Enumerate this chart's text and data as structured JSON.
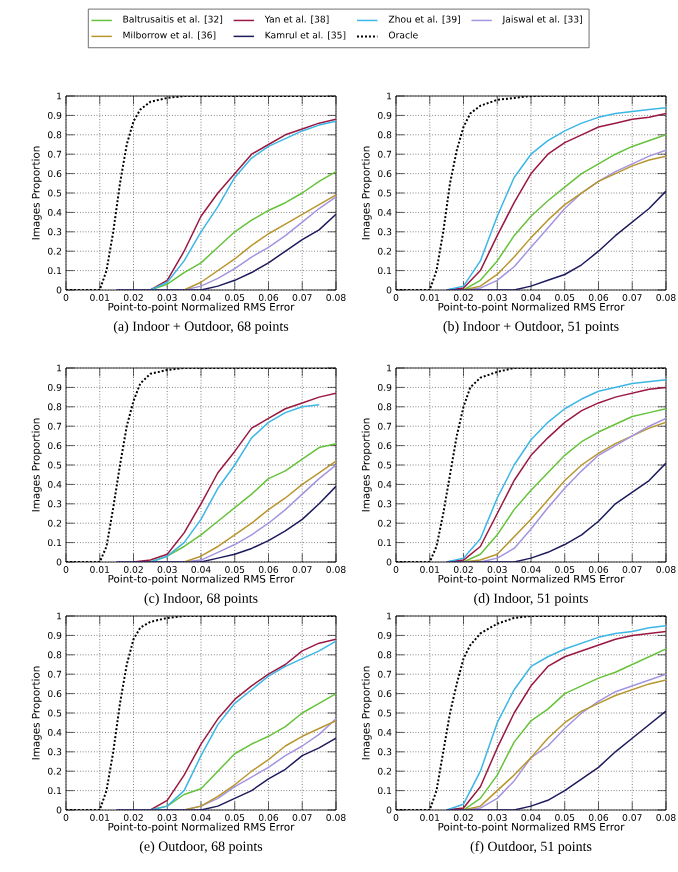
{
  "chart_data": [
    {
      "type": "line",
      "title": "(a) Indoor + Outdoor, 68 points",
      "xlabel": "Point-to-point Normalized RMS Error",
      "ylabel": "Images Proportion",
      "xlim": [
        0,
        0.08
      ],
      "ylim": [
        0,
        1
      ],
      "xticks": [
        0,
        0.01,
        0.02,
        0.03,
        0.04,
        0.05,
        0.06,
        0.07,
        0.08
      ],
      "yticks": [
        0,
        0.1,
        0.2,
        0.3,
        0.4,
        0.5,
        0.6,
        0.7,
        0.8,
        0.9,
        1
      ],
      "grid": true,
      "legend": "top",
      "x": [
        0.015,
        0.02,
        0.025,
        0.03,
        0.035,
        0.04,
        0.045,
        0.05,
        0.055,
        0.06,
        0.065,
        0.07,
        0.075,
        0.08
      ],
      "series": [
        {
          "name": "Baltrusaitis et al. [32]",
          "color": "#66c23a",
          "values": [
            null,
            null,
            0,
            0.03,
            0.09,
            0.14,
            0.22,
            0.3,
            0.36,
            0.41,
            0.45,
            0.5,
            0.56,
            0.61
          ]
        },
        {
          "name": "Jaiswal et al. [33]",
          "color": "#a493e0",
          "values": [
            null,
            null,
            null,
            null,
            0,
            0.02,
            0.06,
            0.11,
            0.17,
            0.22,
            0.28,
            0.35,
            0.42,
            0.48
          ]
        },
        {
          "name": "Kamrul et al. [35]",
          "color": "#1c1a5c",
          "values": [
            0,
            0,
            0,
            0,
            0,
            0,
            0.02,
            0.05,
            0.09,
            0.14,
            0.2,
            0.26,
            0.31,
            0.39
          ]
        },
        {
          "name": "Milborrow et al. [36]",
          "color": "#b8962e",
          "values": [
            null,
            null,
            null,
            null,
            0,
            0.04,
            0.1,
            0.16,
            0.23,
            0.29,
            0.34,
            0.39,
            0.44,
            0.49
          ]
        },
        {
          "name": "Yan et al. [38]",
          "color": "#9a1840",
          "values": [
            null,
            null,
            0,
            0.05,
            0.2,
            0.38,
            0.5,
            0.6,
            0.7,
            0.75,
            0.8,
            0.83,
            0.86,
            0.88
          ]
        },
        {
          "name": "Zhou et al. [39]",
          "color": "#3cb6e6",
          "values": [
            null,
            null,
            0,
            0.04,
            0.15,
            0.3,
            0.43,
            0.58,
            0.68,
            0.74,
            0.78,
            0.82,
            0.85,
            0.87
          ]
        },
        {
          "name": "Oracle",
          "color": "#000000",
          "line_style": "dotted",
          "x": [
            0,
            0.01,
            0.012,
            0.014,
            0.016,
            0.018,
            0.02,
            0.022,
            0.025,
            0.03,
            0.035,
            0.04,
            0.08
          ],
          "values": [
            0,
            0,
            0.1,
            0.3,
            0.55,
            0.75,
            0.87,
            0.93,
            0.97,
            0.99,
            1,
            1,
            1
          ]
        }
      ]
    },
    {
      "type": "line",
      "title": "(b) Indoor + Outdoor, 51 points",
      "xlabel": "Point-to-point Normalized RMS Error",
      "ylabel": "Images Proportion",
      "xlim": [
        0,
        0.08
      ],
      "ylim": [
        0,
        1
      ],
      "xticks": [
        0,
        0.01,
        0.02,
        0.03,
        0.04,
        0.05,
        0.06,
        0.07,
        0.08
      ],
      "yticks": [
        0,
        0.1,
        0.2,
        0.3,
        0.4,
        0.5,
        0.6,
        0.7,
        0.8,
        0.9,
        1
      ],
      "grid": true,
      "x": [
        0.015,
        0.02,
        0.025,
        0.03,
        0.035,
        0.04,
        0.045,
        0.05,
        0.055,
        0.06,
        0.065,
        0.07,
        0.075,
        0.08
      ],
      "series": [
        {
          "color": "#66c23a",
          "values": [
            null,
            0,
            0.05,
            0.15,
            0.28,
            0.38,
            0.46,
            0.53,
            0.6,
            0.65,
            0.7,
            0.74,
            0.77,
            0.8
          ]
        },
        {
          "color": "#a493e0",
          "values": [
            null,
            0,
            0.01,
            0.05,
            0.12,
            0.22,
            0.32,
            0.42,
            0.5,
            0.56,
            0.61,
            0.65,
            0.69,
            0.72
          ]
        },
        {
          "color": "#1c1a5c",
          "values": [
            0,
            0,
            0,
            0,
            0,
            0.02,
            0.05,
            0.08,
            0.13,
            0.2,
            0.28,
            0.35,
            0.42,
            0.51
          ]
        },
        {
          "color": "#b8962e",
          "values": [
            null,
            0,
            0.02,
            0.08,
            0.17,
            0.27,
            0.36,
            0.44,
            0.5,
            0.56,
            0.6,
            0.64,
            0.67,
            0.69
          ]
        },
        {
          "color": "#9a1840",
          "values": [
            0,
            0.01,
            0.1,
            0.28,
            0.45,
            0.6,
            0.7,
            0.76,
            0.8,
            0.84,
            0.86,
            0.88,
            0.89,
            0.91
          ]
        },
        {
          "color": "#3cb6e6",
          "values": [
            0,
            0.02,
            0.15,
            0.38,
            0.58,
            0.7,
            0.77,
            0.82,
            0.86,
            0.89,
            0.91,
            0.92,
            0.93,
            0.94
          ]
        },
        {
          "color": "#000000",
          "line_style": "dotted",
          "x": [
            0,
            0.01,
            0.012,
            0.014,
            0.016,
            0.018,
            0.02,
            0.022,
            0.025,
            0.03,
            0.035,
            0.04,
            0.08
          ],
          "values": [
            0,
            0,
            0.1,
            0.3,
            0.55,
            0.72,
            0.84,
            0.91,
            0.95,
            0.98,
            0.99,
            1,
            1
          ]
        }
      ]
    },
    {
      "type": "line",
      "title": "(c) Indoor, 68 points",
      "xlabel": "Point-to-point Normalized RMS Error",
      "ylabel": "Images Proportion",
      "xlim": [
        0,
        0.08
      ],
      "ylim": [
        0,
        1
      ],
      "xticks": [
        0,
        0.01,
        0.02,
        0.03,
        0.04,
        0.05,
        0.06,
        0.07,
        0.08
      ],
      "yticks": [
        0,
        0.1,
        0.2,
        0.3,
        0.4,
        0.5,
        0.6,
        0.7,
        0.8,
        0.9,
        1
      ],
      "grid": true,
      "x": [
        0.015,
        0.02,
        0.025,
        0.03,
        0.035,
        0.04,
        0.045,
        0.05,
        0.055,
        0.06,
        0.065,
        0.07,
        0.075,
        0.08
      ],
      "series": [
        {
          "color": "#66c23a",
          "values": [
            null,
            null,
            0,
            0.03,
            0.08,
            0.14,
            0.21,
            0.28,
            0.35,
            0.43,
            0.47,
            0.53,
            0.59,
            0.61
          ]
        },
        {
          "color": "#a493e0",
          "values": [
            null,
            null,
            null,
            null,
            0,
            0.01,
            0.05,
            0.09,
            0.14,
            0.2,
            0.27,
            0.35,
            0.43,
            0.5
          ]
        },
        {
          "color": "#1c1a5c",
          "values": [
            0,
            0,
            0,
            0,
            0,
            0,
            0.02,
            0.04,
            0.07,
            0.11,
            0.16,
            0.22,
            0.3,
            0.39
          ]
        },
        {
          "color": "#b8962e",
          "values": [
            null,
            null,
            null,
            null,
            0,
            0.03,
            0.08,
            0.14,
            0.2,
            0.27,
            0.33,
            0.4,
            0.46,
            0.52
          ]
        },
        {
          "color": "#9a1840",
          "values": [
            null,
            0,
            0.01,
            0.04,
            0.15,
            0.3,
            0.46,
            0.57,
            0.69,
            0.74,
            0.79,
            0.82,
            0.85,
            0.87
          ]
        },
        {
          "color": "#3cb6e6",
          "values": [
            null,
            null,
            0,
            0.03,
            0.1,
            0.22,
            0.38,
            0.5,
            0.64,
            0.72,
            0.77,
            0.8,
            0.81,
            null
          ]
        },
        {
          "color": "#000000",
          "line_style": "dotted",
          "x": [
            0,
            0.01,
            0.012,
            0.014,
            0.016,
            0.018,
            0.02,
            0.022,
            0.025,
            0.03,
            0.035,
            0.04,
            0.08
          ],
          "values": [
            0,
            0,
            0.08,
            0.28,
            0.5,
            0.7,
            0.83,
            0.92,
            0.97,
            0.99,
            1,
            1,
            1
          ]
        }
      ]
    },
    {
      "type": "line",
      "title": "(d) Indoor, 51 points",
      "xlabel": "Point-to-point Normalized RMS Error",
      "ylabel": "Images Proportion",
      "xlim": [
        0,
        0.08
      ],
      "ylim": [
        0,
        1
      ],
      "xticks": [
        0,
        0.01,
        0.02,
        0.03,
        0.04,
        0.05,
        0.06,
        0.07,
        0.08
      ],
      "yticks": [
        0,
        0.1,
        0.2,
        0.3,
        0.4,
        0.5,
        0.6,
        0.7,
        0.8,
        0.9,
        1
      ],
      "grid": true,
      "x": [
        0.015,
        0.02,
        0.025,
        0.03,
        0.035,
        0.04,
        0.045,
        0.05,
        0.055,
        0.06,
        0.065,
        0.07,
        0.075,
        0.08
      ],
      "series": [
        {
          "color": "#66c23a",
          "values": [
            null,
            0,
            0.04,
            0.14,
            0.27,
            0.37,
            0.46,
            0.55,
            0.62,
            0.67,
            0.71,
            0.75,
            0.77,
            0.79
          ]
        },
        {
          "color": "#a493e0",
          "values": [
            null,
            null,
            0,
            0.02,
            0.07,
            0.17,
            0.28,
            0.38,
            0.47,
            0.55,
            0.6,
            0.65,
            0.7,
            0.74
          ]
        },
        {
          "color": "#1c1a5c",
          "values": [
            0,
            0,
            0,
            0,
            0,
            0.02,
            0.05,
            0.09,
            0.14,
            0.21,
            0.3,
            0.36,
            0.42,
            0.51
          ]
        },
        {
          "color": "#b8962e",
          "values": [
            null,
            0,
            0.01,
            0.04,
            0.13,
            0.22,
            0.32,
            0.42,
            0.5,
            0.56,
            0.61,
            0.65,
            0.69,
            0.72
          ]
        },
        {
          "color": "#9a1840",
          "values": [
            0,
            0.01,
            0.08,
            0.25,
            0.42,
            0.55,
            0.64,
            0.72,
            0.78,
            0.82,
            0.85,
            0.87,
            0.89,
            0.9
          ]
        },
        {
          "color": "#3cb6e6",
          "values": [
            0,
            0.02,
            0.12,
            0.33,
            0.5,
            0.63,
            0.72,
            0.79,
            0.84,
            0.88,
            0.9,
            0.92,
            0.93,
            0.94
          ]
        },
        {
          "color": "#000000",
          "line_style": "dotted",
          "x": [
            0,
            0.01,
            0.012,
            0.014,
            0.016,
            0.018,
            0.02,
            0.022,
            0.025,
            0.03,
            0.035,
            0.04,
            0.08
          ],
          "values": [
            0,
            0,
            0.08,
            0.25,
            0.45,
            0.65,
            0.8,
            0.9,
            0.95,
            0.98,
            1,
            1,
            1
          ]
        }
      ]
    },
    {
      "type": "line",
      "title": "(e) Outdoor, 68 points",
      "xlabel": "Point-to-point Normalized RMS Error",
      "ylabel": "Images Proportion",
      "xlim": [
        0,
        0.08
      ],
      "ylim": [
        0,
        1
      ],
      "xticks": [
        0,
        0.01,
        0.02,
        0.03,
        0.04,
        0.05,
        0.06,
        0.07,
        0.08
      ],
      "yticks": [
        0,
        0.1,
        0.2,
        0.3,
        0.4,
        0.5,
        0.6,
        0.7,
        0.8,
        0.9,
        1
      ],
      "grid": true,
      "x": [
        0.015,
        0.02,
        0.025,
        0.03,
        0.035,
        0.04,
        0.045,
        0.05,
        0.055,
        0.06,
        0.065,
        0.07,
        0.075,
        0.08
      ],
      "series": [
        {
          "color": "#66c23a",
          "values": [
            null,
            null,
            0,
            0.02,
            0.08,
            0.11,
            0.2,
            0.29,
            0.34,
            0.38,
            0.43,
            0.5,
            0.55,
            0.6
          ]
        },
        {
          "color": "#a493e0",
          "values": [
            null,
            null,
            null,
            null,
            0,
            0.02,
            0.06,
            0.12,
            0.17,
            0.22,
            0.28,
            0.33,
            0.39,
            0.47
          ]
        },
        {
          "color": "#1c1a5c",
          "values": [
            0,
            0,
            0,
            0,
            0,
            0,
            0.02,
            0.06,
            0.1,
            0.16,
            0.21,
            0.28,
            0.32,
            0.37
          ]
        },
        {
          "color": "#b8962e",
          "values": [
            null,
            null,
            null,
            null,
            0,
            0.02,
            0.07,
            0.13,
            0.2,
            0.26,
            0.33,
            0.38,
            0.42,
            0.46
          ]
        },
        {
          "color": "#9a1840",
          "values": [
            null,
            null,
            0,
            0.05,
            0.18,
            0.34,
            0.47,
            0.57,
            0.64,
            0.7,
            0.75,
            0.82,
            0.86,
            0.88
          ]
        },
        {
          "color": "#3cb6e6",
          "values": [
            null,
            null,
            0,
            0.02,
            0.1,
            0.28,
            0.44,
            0.55,
            0.62,
            0.69,
            0.74,
            0.78,
            0.82,
            0.87
          ]
        },
        {
          "color": "#000000",
          "line_style": "dotted",
          "x": [
            0,
            0.01,
            0.012,
            0.014,
            0.016,
            0.018,
            0.02,
            0.022,
            0.025,
            0.03,
            0.035,
            0.04,
            0.08
          ],
          "values": [
            0,
            0,
            0.1,
            0.3,
            0.55,
            0.75,
            0.88,
            0.94,
            0.97,
            0.99,
            1,
            1,
            1
          ]
        }
      ]
    },
    {
      "type": "line",
      "title": "(f) Outdoor, 51 points",
      "xlabel": "Point-to-point Normalized RMS Error",
      "ylabel": "Images Proportion",
      "xlim": [
        0,
        0.08
      ],
      "ylim": [
        0,
        1
      ],
      "xticks": [
        0,
        0.01,
        0.02,
        0.03,
        0.04,
        0.05,
        0.06,
        0.07,
        0.08
      ],
      "yticks": [
        0,
        0.1,
        0.2,
        0.3,
        0.4,
        0.5,
        0.6,
        0.7,
        0.8,
        0.9,
        1
      ],
      "grid": true,
      "x": [
        0.015,
        0.02,
        0.025,
        0.03,
        0.035,
        0.04,
        0.045,
        0.05,
        0.055,
        0.06,
        0.065,
        0.07,
        0.075,
        0.08
      ],
      "series": [
        {
          "color": "#66c23a",
          "values": [
            null,
            0,
            0.06,
            0.18,
            0.35,
            0.46,
            0.52,
            0.6,
            0.64,
            0.68,
            0.71,
            0.75,
            0.79,
            0.83
          ]
        },
        {
          "color": "#a493e0",
          "values": [
            null,
            0,
            0.01,
            0.06,
            0.15,
            0.27,
            0.33,
            0.42,
            0.5,
            0.56,
            0.61,
            0.64,
            0.67,
            0.7
          ]
        },
        {
          "color": "#1c1a5c",
          "values": [
            0,
            0,
            0,
            0,
            0,
            0.02,
            0.05,
            0.1,
            0.16,
            0.22,
            0.3,
            0.37,
            0.44,
            0.51
          ]
        },
        {
          "color": "#b8962e",
          "values": [
            null,
            0,
            0.02,
            0.1,
            0.18,
            0.27,
            0.37,
            0.45,
            0.51,
            0.55,
            0.59,
            0.62,
            0.65,
            0.67
          ]
        },
        {
          "color": "#9a1840",
          "values": [
            0,
            0.01,
            0.12,
            0.32,
            0.5,
            0.64,
            0.74,
            0.79,
            0.82,
            0.85,
            0.88,
            0.9,
            0.91,
            0.92
          ]
        },
        {
          "color": "#3cb6e6",
          "values": [
            0,
            0.03,
            0.2,
            0.45,
            0.62,
            0.74,
            0.79,
            0.83,
            0.86,
            0.89,
            0.91,
            0.92,
            0.94,
            0.95
          ]
        },
        {
          "color": "#000000",
          "line_style": "dotted",
          "x": [
            0,
            0.01,
            0.012,
            0.014,
            0.016,
            0.018,
            0.02,
            0.022,
            0.025,
            0.03,
            0.035,
            0.04,
            0.08
          ],
          "values": [
            0,
            0,
            0.1,
            0.3,
            0.5,
            0.65,
            0.78,
            0.85,
            0.91,
            0.96,
            0.99,
            1,
            1
          ]
        }
      ]
    }
  ]
}
